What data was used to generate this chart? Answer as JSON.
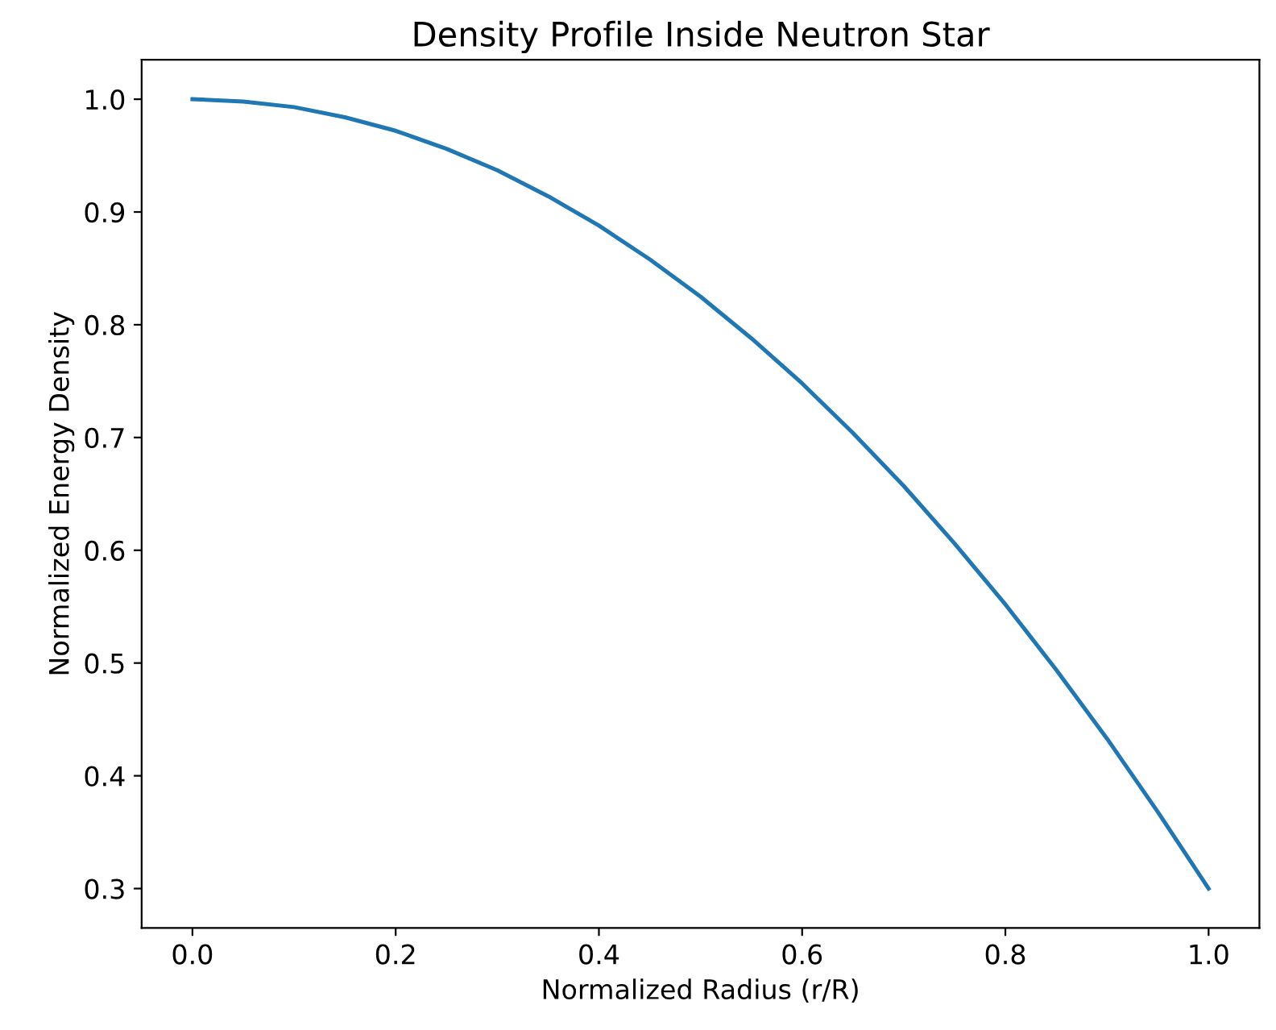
{
  "chart_data": {
    "type": "line",
    "title": "Density Profile Inside Neutron Star",
    "xlabel": "Normalized Radius (r/R)",
    "ylabel": "Normalized Energy Density",
    "x": [
      0,
      0.05,
      0.1,
      0.15,
      0.2,
      0.25,
      0.3,
      0.35,
      0.4,
      0.45,
      0.5,
      0.55,
      0.6,
      0.65,
      0.7,
      0.75,
      0.8,
      0.85,
      0.9,
      0.95,
      1.0
    ],
    "series": [
      {
        "color": "#1f77b4",
        "values": [
          1.0,
          0.998,
          0.993,
          0.984,
          0.972,
          0.956,
          0.937,
          0.914,
          0.888,
          0.858,
          0.825,
          0.788,
          0.748,
          0.704,
          0.657,
          0.606,
          0.552,
          0.494,
          0.433,
          0.368,
          0.3
        ]
      }
    ],
    "xlim": [
      -0.05,
      1.05
    ],
    "ylim": [
      0.265,
      1.035
    ],
    "xticks": [
      {
        "value": 0,
        "label": "0.0"
      },
      0.2,
      0.4,
      0.6,
      0.8,
      {
        "value": 1,
        "label": "1.0"
      }
    ],
    "yticks": [
      0.3,
      0.4,
      0.5,
      0.6,
      0.7,
      0.8,
      0.9,
      {
        "value": 1,
        "label": "1.0"
      }
    ],
    "grid": false,
    "legend": false,
    "marker": "none",
    "line_style": "solid"
  }
}
